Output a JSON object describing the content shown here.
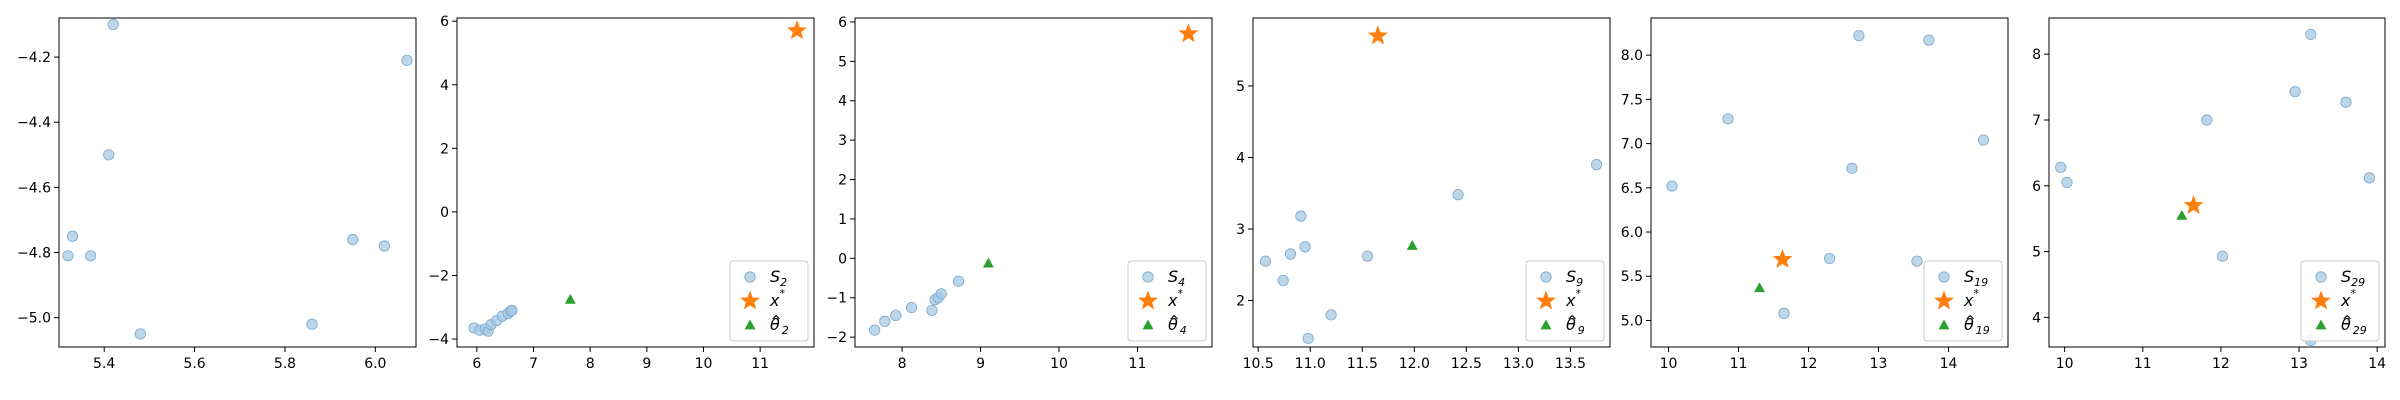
{
  "colors": {
    "points": "#a6c8e3",
    "points_edge": "#7fa9cc",
    "star": "#ff7f0e",
    "triangle": "#2ca02c"
  },
  "chart_data": [
    {
      "type": "scatter",
      "xlim": [
        5.3,
        6.09
      ],
      "ylim": [
        -5.09,
        -4.08
      ],
      "xticks": [
        5.4,
        5.6,
        5.8,
        6.0
      ],
      "xtick_labels": [
        "5.4",
        "5.6",
        "5.8",
        "6.0"
      ],
      "yticks": [
        -5.0,
        -4.8,
        -4.6,
        -4.4,
        -4.2
      ],
      "ytick_labels": [
        "−5.0",
        "−4.8",
        "−4.6",
        "−4.4",
        "−4.2"
      ],
      "legend": null,
      "series": [
        {
          "kind": "points",
          "x": [
            5.42,
            6.07,
            5.41,
            5.33,
            5.32,
            5.37,
            5.95,
            6.02,
            5.86,
            5.48
          ],
          "y": [
            -4.1,
            -4.21,
            -4.5,
            -4.75,
            -4.81,
            -4.81,
            -4.76,
            -4.78,
            -5.02,
            -5.05
          ]
        }
      ]
    },
    {
      "type": "scatter",
      "xlim": [
        5.65,
        11.95
      ],
      "ylim": [
        -4.25,
        6.1
      ],
      "xticks": [
        6,
        7,
        8,
        9,
        10,
        11
      ],
      "xtick_labels": [
        "6",
        "7",
        "8",
        "9",
        "10",
        "11"
      ],
      "yticks": [
        -4,
        -2,
        0,
        2,
        4,
        6
      ],
      "ytick_labels": [
        "−4",
        "−2",
        "0",
        "2",
        "4",
        "6"
      ],
      "legend": "bottom-right",
      "series": [
        {
          "kind": "points",
          "name": "S",
          "sub": "2",
          "x": [
            5.95,
            6.05,
            6.15,
            6.2,
            6.25,
            6.35,
            6.45,
            6.55,
            6.6,
            6.62
          ],
          "y": [
            -3.65,
            -3.72,
            -3.68,
            -3.75,
            -3.55,
            -3.42,
            -3.28,
            -3.2,
            -3.12,
            -3.1
          ]
        },
        {
          "kind": "star",
          "name": "x",
          "sup": "*",
          "x": [
            11.65
          ],
          "y": [
            5.7
          ]
        },
        {
          "kind": "triangle",
          "name": "θ",
          "sub": "2",
          "x": [
            7.65
          ],
          "y": [
            -2.75
          ]
        }
      ]
    },
    {
      "type": "scatter",
      "xlim": [
        7.4,
        11.95
      ],
      "ylim": [
        -2.25,
        6.1
      ],
      "xticks": [
        8,
        9,
        10,
        11
      ],
      "xtick_labels": [
        "8",
        "9",
        "10",
        "11"
      ],
      "yticks": [
        -2,
        -1,
        0,
        1,
        2,
        3,
        4,
        5,
        6
      ],
      "ytick_labels": [
        "−2",
        "−1",
        "0",
        "1",
        "2",
        "3",
        "4",
        "5",
        "6"
      ],
      "legend": "bottom-right",
      "series": [
        {
          "kind": "points",
          "name": "S",
          "sub": "4",
          "x": [
            7.65,
            7.78,
            7.92,
            8.12,
            8.38,
            8.42,
            8.46,
            8.5,
            8.72
          ],
          "y": [
            -1.82,
            -1.6,
            -1.45,
            -1.25,
            -1.32,
            -1.05,
            -1.0,
            -0.9,
            -0.58
          ]
        },
        {
          "kind": "star",
          "name": "x",
          "sup": "*",
          "x": [
            11.65
          ],
          "y": [
            5.7
          ]
        },
        {
          "kind": "triangle",
          "name": "θ",
          "sub": "4",
          "x": [
            9.1
          ],
          "y": [
            -0.12
          ]
        }
      ]
    },
    {
      "type": "scatter",
      "xlim": [
        10.45,
        13.88
      ],
      "ylim": [
        1.35,
        5.95
      ],
      "xticks": [
        10.5,
        11.0,
        11.5,
        12.0,
        12.5,
        13.0,
        13.5
      ],
      "xtick_labels": [
        "10.5",
        "11.0",
        "11.5",
        "12.0",
        "12.5",
        "13.0",
        "13.5"
      ],
      "yticks": [
        2,
        3,
        4,
        5
      ],
      "ytick_labels": [
        "2",
        "3",
        "4",
        "5"
      ],
      "legend": "bottom-right",
      "series": [
        {
          "kind": "points",
          "name": "S",
          "sub": "9",
          "x": [
            10.57,
            10.74,
            10.81,
            10.91,
            10.95,
            10.98,
            11.2,
            11.55,
            12.42,
            13.75
          ],
          "y": [
            2.55,
            2.28,
            2.65,
            3.18,
            2.75,
            1.47,
            1.8,
            2.62,
            3.48,
            3.9
          ]
        },
        {
          "kind": "star",
          "name": "x",
          "sup": "*",
          "x": [
            11.65
          ],
          "y": [
            5.7
          ]
        },
        {
          "kind": "triangle",
          "name": "θ",
          "sub": "9",
          "x": [
            11.98
          ],
          "y": [
            2.77
          ]
        }
      ]
    },
    {
      "type": "scatter",
      "xlim": [
        9.75,
        14.85
      ],
      "ylim": [
        4.7,
        8.42
      ],
      "xticks": [
        10,
        11,
        12,
        13,
        14
      ],
      "xtick_labels": [
        "10",
        "11",
        "12",
        "13",
        "14"
      ],
      "yticks": [
        5.0,
        5.5,
        6.0,
        6.5,
        7.0,
        7.5,
        8.0
      ],
      "ytick_labels": [
        "5.0",
        "5.5",
        "6.0",
        "6.5",
        "7.0",
        "7.5",
        "8.0"
      ],
      "legend": "bottom-right",
      "series": [
        {
          "kind": "points",
          "name": "S",
          "sub": "19",
          "x": [
            10.05,
            10.85,
            11.65,
            12.3,
            12.62,
            12.72,
            13.55,
            13.72,
            14.5
          ],
          "y": [
            6.52,
            7.28,
            5.08,
            5.7,
            6.72,
            8.22,
            5.67,
            8.17,
            7.04
          ]
        },
        {
          "kind": "star",
          "name": "x",
          "sup": "*",
          "x": [
            11.63
          ],
          "y": [
            5.69
          ]
        },
        {
          "kind": "triangle",
          "name": "θ",
          "sub": "19",
          "x": [
            11.3
          ],
          "y": [
            5.37
          ]
        }
      ]
    },
    {
      "type": "scatter",
      "xlim": [
        9.8,
        14.1
      ],
      "ylim": [
        3.55,
        8.55
      ],
      "xticks": [
        10,
        11,
        12,
        13,
        14
      ],
      "xtick_labels": [
        "10",
        "11",
        "12",
        "13",
        "14"
      ],
      "yticks": [
        4,
        5,
        6,
        7,
        8
      ],
      "ytick_labels": [
        "4",
        "5",
        "6",
        "7",
        "8"
      ],
      "legend": "bottom-right",
      "series": [
        {
          "kind": "points",
          "name": "S",
          "sub": "29",
          "x": [
            9.95,
            10.03,
            11.82,
            12.02,
            12.95,
            13.15,
            13.6,
            13.9,
            13.15
          ],
          "y": [
            6.28,
            6.05,
            7.0,
            4.93,
            7.43,
            8.3,
            7.27,
            6.12,
            3.65
          ]
        },
        {
          "kind": "star",
          "name": "x",
          "sup": "*",
          "x": [
            11.65
          ],
          "y": [
            5.7
          ]
        },
        {
          "kind": "triangle",
          "name": "θ",
          "sub": "29",
          "x": [
            11.5
          ],
          "y": [
            5.55
          ]
        }
      ]
    }
  ]
}
